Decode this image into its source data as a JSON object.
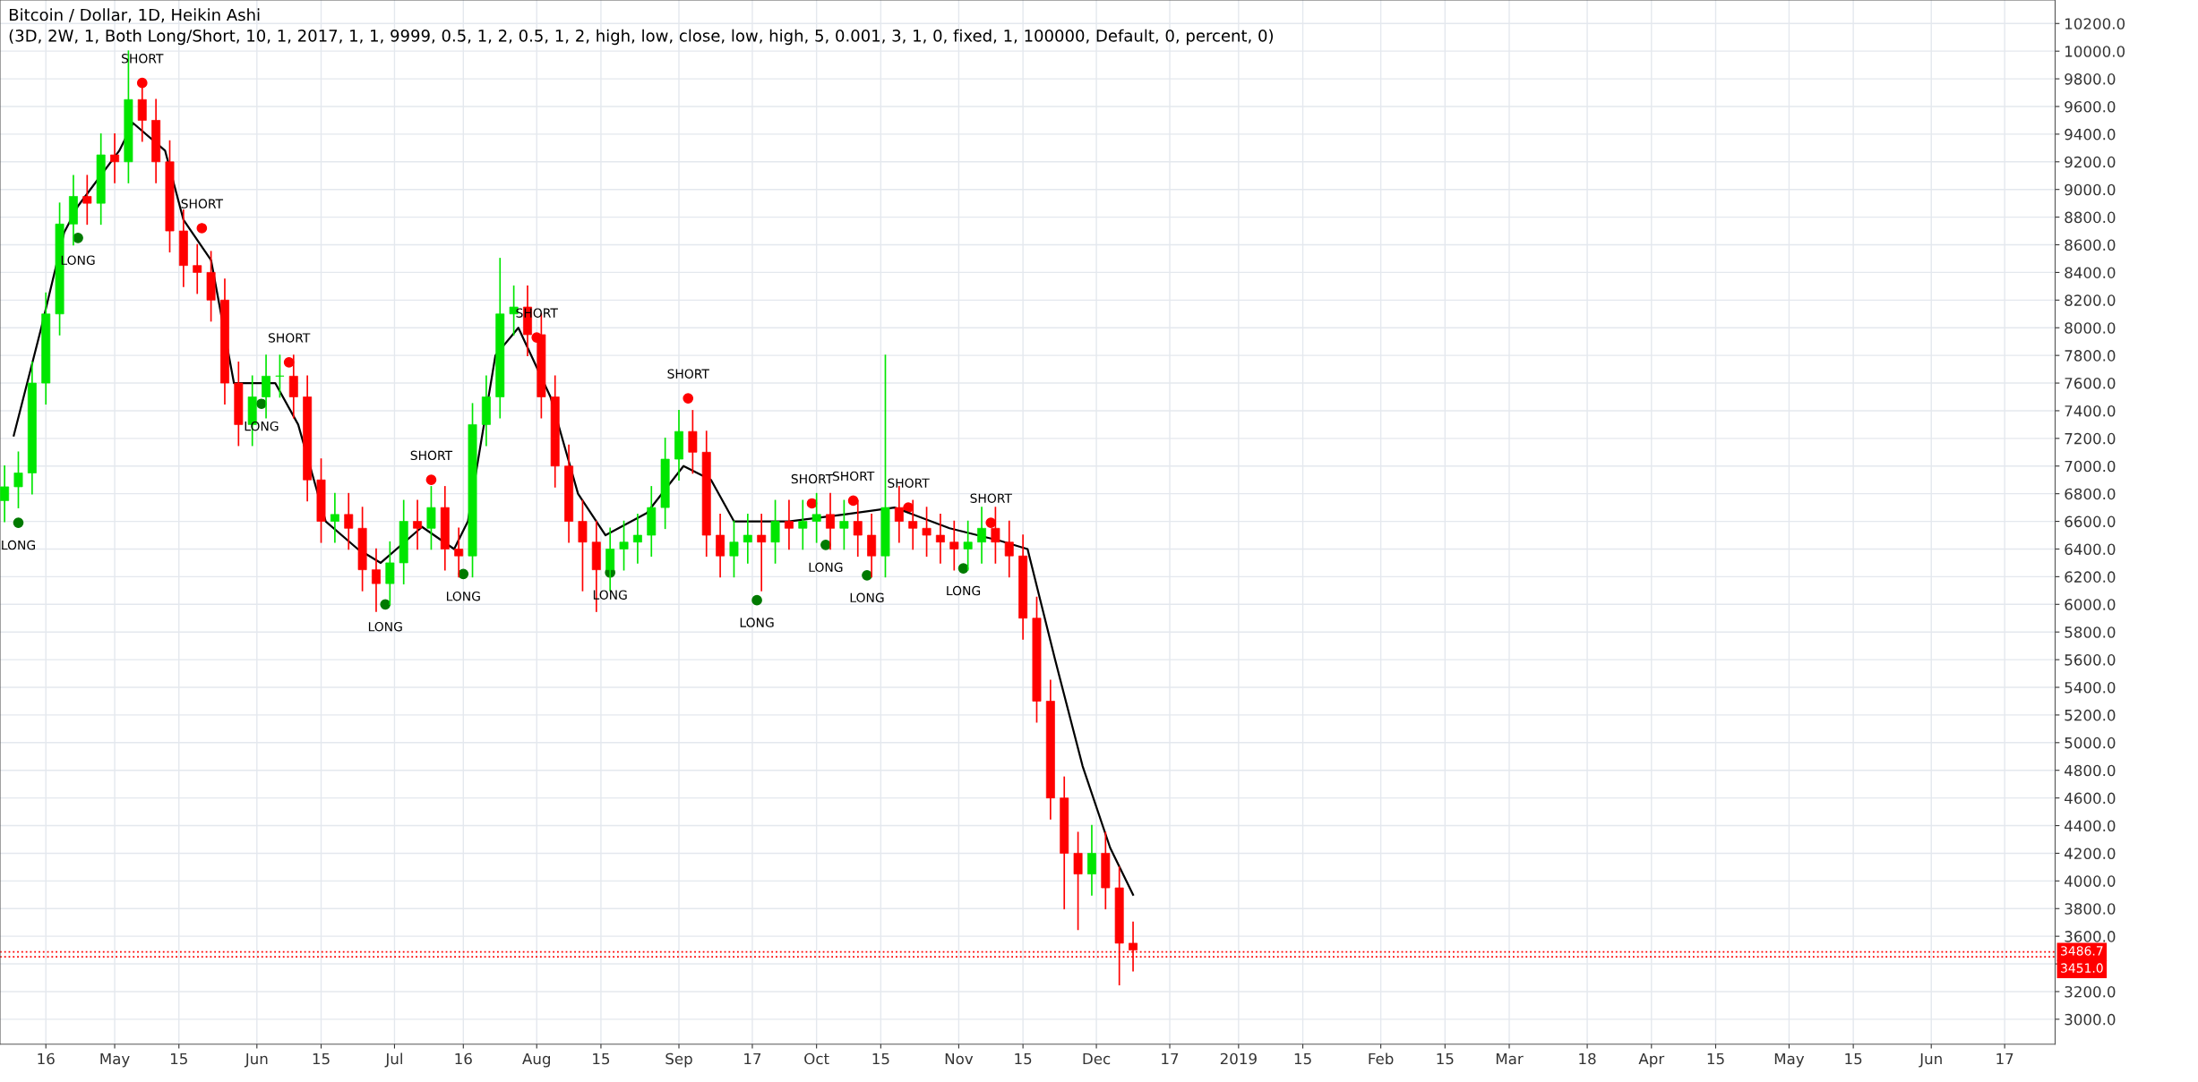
{
  "chart_data": {
    "type": "candlestick",
    "title": "Bitcoin / Dollar, 1D, Heikin Ashi",
    "subtitle": "(3D, 2W, 1, Both Long/Short, 10, 1, 2017, 1, 1, 9999, 0.5, 1, 2, 0.5, 1, 2, high, low, close, low, high, 5, 0.001, 3, 1, 0, fixed, 1, 100000, Default, 0, percent, 0)",
    "x": [
      "2018-04-07",
      "2018-04-10",
      "2018-04-13",
      "2018-04-16",
      "2018-04-19",
      "2018-04-22",
      "2018-04-25",
      "2018-04-28",
      "2018-05-01",
      "2018-05-04",
      "2018-05-07",
      "2018-05-10",
      "2018-05-13",
      "2018-05-16",
      "2018-05-19",
      "2018-05-22",
      "2018-05-25",
      "2018-05-28",
      "2018-05-31",
      "2018-06-03",
      "2018-06-06",
      "2018-06-09",
      "2018-06-12",
      "2018-06-15",
      "2018-06-18",
      "2018-06-21",
      "2018-06-24",
      "2018-06-27",
      "2018-06-30",
      "2018-07-03",
      "2018-07-06",
      "2018-07-09",
      "2018-07-12",
      "2018-07-15",
      "2018-07-18",
      "2018-07-21",
      "2018-07-24",
      "2018-07-27",
      "2018-07-30",
      "2018-08-02",
      "2018-08-05",
      "2018-08-08",
      "2018-08-11",
      "2018-08-14",
      "2018-08-17",
      "2018-08-20",
      "2018-08-23",
      "2018-08-26",
      "2018-08-29",
      "2018-09-01",
      "2018-09-04",
      "2018-09-07",
      "2018-09-10",
      "2018-09-13",
      "2018-09-16",
      "2018-09-19",
      "2018-09-22",
      "2018-09-25",
      "2018-09-28",
      "2018-10-01",
      "2018-10-04",
      "2018-10-07",
      "2018-10-10",
      "2018-10-13",
      "2018-10-16",
      "2018-10-19",
      "2018-10-22",
      "2018-10-25",
      "2018-10-28",
      "2018-10-31",
      "2018-11-03",
      "2018-11-06",
      "2018-11-09",
      "2018-11-12",
      "2018-11-15",
      "2018-11-18",
      "2018-11-21",
      "2018-11-24",
      "2018-11-27",
      "2018-11-30",
      "2018-12-03",
      "2018-12-06",
      "2018-12-09"
    ],
    "ohlc": [
      [
        6750,
        7000,
        6600,
        6850
      ],
      [
        6850,
        7100,
        6700,
        6950
      ],
      [
        6950,
        7750,
        6800,
        7600
      ],
      [
        7600,
        8250,
        7450,
        8100
      ],
      [
        8100,
        8900,
        7950,
        8750
      ],
      [
        8750,
        9100,
        8600,
        8950
      ],
      [
        8950,
        9100,
        8750,
        8900
      ],
      [
        8900,
        9400,
        8750,
        9250
      ],
      [
        9250,
        9400,
        9050,
        9200
      ],
      [
        9200,
        10000,
        9050,
        9650
      ],
      [
        9650,
        9800,
        9350,
        9500
      ],
      [
        9500,
        9650,
        9050,
        9200
      ],
      [
        9200,
        9350,
        8550,
        8700
      ],
      [
        8700,
        8850,
        8300,
        8450
      ],
      [
        8450,
        8600,
        8250,
        8400
      ],
      [
        8400,
        8550,
        8050,
        8200
      ],
      [
        8200,
        8350,
        7450,
        7600
      ],
      [
        7600,
        7750,
        7150,
        7300
      ],
      [
        7300,
        7650,
        7150,
        7500
      ],
      [
        7500,
        7800,
        7350,
        7650
      ],
      [
        7650,
        7800,
        7500,
        7650
      ],
      [
        7650,
        7800,
        7350,
        7500
      ],
      [
        7500,
        7650,
        6750,
        6900
      ],
      [
        6900,
        7050,
        6450,
        6600
      ],
      [
        6600,
        6800,
        6450,
        6650
      ],
      [
        6650,
        6800,
        6400,
        6550
      ],
      [
        6550,
        6700,
        6100,
        6250
      ],
      [
        6250,
        6400,
        5950,
        6150
      ],
      [
        6150,
        6450,
        6000,
        6300
      ],
      [
        6300,
        6750,
        6150,
        6600
      ],
      [
        6600,
        6750,
        6400,
        6550
      ],
      [
        6550,
        6850,
        6400,
        6700
      ],
      [
        6700,
        6850,
        6250,
        6400
      ],
      [
        6400,
        6550,
        6200,
        6350
      ],
      [
        6350,
        7450,
        6200,
        7300
      ],
      [
        7300,
        7650,
        7150,
        7500
      ],
      [
        7500,
        8500,
        7350,
        8100
      ],
      [
        8100,
        8300,
        7950,
        8150
      ],
      [
        8150,
        8300,
        7800,
        7950
      ],
      [
        7950,
        8100,
        7350,
        7500
      ],
      [
        7500,
        7650,
        6850,
        7000
      ],
      [
        7000,
        7150,
        6450,
        6600
      ],
      [
        6600,
        6750,
        6100,
        6450
      ],
      [
        6450,
        6600,
        5950,
        6250
      ],
      [
        6250,
        6550,
        6100,
        6400
      ],
      [
        6400,
        6600,
        6250,
        6450
      ],
      [
        6450,
        6650,
        6300,
        6500
      ],
      [
        6500,
        6850,
        6350,
        6700
      ],
      [
        6700,
        7200,
        6550,
        7050
      ],
      [
        7050,
        7400,
        6900,
        7250
      ],
      [
        7250,
        7400,
        6950,
        7100
      ],
      [
        7100,
        7250,
        6350,
        6500
      ],
      [
        6500,
        6650,
        6200,
        6350
      ],
      [
        6350,
        6600,
        6200,
        6450
      ],
      [
        6450,
        6650,
        6300,
        6500
      ],
      [
        6500,
        6650,
        6100,
        6450
      ],
      [
        6450,
        6750,
        6300,
        6600
      ],
      [
        6600,
        6750,
        6400,
        6550
      ],
      [
        6550,
        6750,
        6400,
        6600
      ],
      [
        6600,
        6800,
        6450,
        6650
      ],
      [
        6650,
        6800,
        6400,
        6550
      ],
      [
        6550,
        6750,
        6400,
        6600
      ],
      [
        6600,
        6750,
        6350,
        6500
      ],
      [
        6500,
        6650,
        6200,
        6350
      ],
      [
        6350,
        7800,
        6200,
        6700
      ],
      [
        6700,
        6850,
        6450,
        6600
      ],
      [
        6600,
        6750,
        6400,
        6550
      ],
      [
        6550,
        6700,
        6350,
        6500
      ],
      [
        6500,
        6650,
        6300,
        6450
      ],
      [
        6450,
        6600,
        6250,
        6400
      ],
      [
        6400,
        6600,
        6250,
        6450
      ],
      [
        6450,
        6700,
        6300,
        6550
      ],
      [
        6550,
        6700,
        6300,
        6450
      ],
      [
        6450,
        6600,
        6200,
        6350
      ],
      [
        6350,
        6500,
        5750,
        5900
      ],
      [
        5900,
        6050,
        5150,
        5300
      ],
      [
        5300,
        5450,
        4450,
        4600
      ],
      [
        4600,
        4750,
        3800,
        4200
      ],
      [
        4200,
        4350,
        3650,
        4050
      ],
      [
        4050,
        4400,
        3900,
        4200
      ],
      [
        4200,
        4350,
        3800,
        3950
      ],
      [
        3950,
        4100,
        3250,
        3550
      ],
      [
        3550,
        3700,
        3350,
        3500
      ]
    ],
    "colors": [
      "#00e600",
      "#00e600",
      "#00e600",
      "#00e600",
      "#00e600",
      "#00e600",
      "#ff0000",
      "#00e600",
      "#ff0000",
      "#00e600",
      "#ff0000",
      "#ff0000",
      "#ff0000",
      "#ff0000",
      "#ff0000",
      "#ff0000",
      "#ff0000",
      "#ff0000",
      "#00e600",
      "#00e600",
      "#00e600",
      "#ff0000",
      "#ff0000",
      "#ff0000",
      "#00e600",
      "#ff0000",
      "#ff0000",
      "#ff0000",
      "#00e600",
      "#00e600",
      "#ff0000",
      "#00e600",
      "#ff0000",
      "#ff0000",
      "#00e600",
      "#00e600",
      "#00e600",
      "#00e600",
      "#ff0000",
      "#ff0000",
      "#ff0000",
      "#ff0000",
      "#ff0000",
      "#ff0000",
      "#00e600",
      "#00e600",
      "#00e600",
      "#00e600",
      "#00e600",
      "#00e600",
      "#ff0000",
      "#ff0000",
      "#ff0000",
      "#00e600",
      "#00e600",
      "#ff0000",
      "#00e600",
      "#ff0000",
      "#00e600",
      "#00e600",
      "#ff0000",
      "#00e600",
      "#ff0000",
      "#ff0000",
      "#00e600",
      "#ff0000",
      "#ff0000",
      "#ff0000",
      "#ff0000",
      "#ff0000",
      "#00e600",
      "#00e600",
      "#ff0000",
      "#ff0000",
      "#ff0000",
      "#ff0000",
      "#ff0000",
      "#ff0000",
      "#ff0000",
      "#00e600",
      "#ff0000",
      "#ff0000",
      "#ff0000"
    ],
    "series": [
      {
        "type": "line",
        "color": "#000000",
        "x": [
          "2018-04-09",
          "2018-04-15",
          "2018-04-20",
          "2018-04-23",
          "2018-05-02",
          "2018-05-05",
          "2018-05-12",
          "2018-05-16",
          "2018-05-22",
          "2018-05-27",
          "2018-06-05",
          "2018-06-10",
          "2018-06-16",
          "2018-06-23",
          "2018-06-28",
          "2018-07-07",
          "2018-07-14",
          "2018-07-17",
          "2018-07-23",
          "2018-07-28",
          "2018-08-04",
          "2018-08-10",
          "2018-08-16",
          "2018-08-25",
          "2018-09-02",
          "2018-09-08",
          "2018-09-13",
          "2018-09-25",
          "2018-10-07",
          "2018-10-18",
          "2018-10-30",
          "2018-11-10",
          "2018-11-16",
          "2018-11-22",
          "2018-11-28",
          "2018-12-04",
          "2018-12-09"
        ],
        "values": [
          7220,
          8000,
          8690,
          8880,
          9280,
          9480,
          9280,
          8780,
          8490,
          7600,
          7600,
          7300,
          6600,
          6400,
          6300,
          6560,
          6400,
          6600,
          7800,
          8000,
          7500,
          6800,
          6500,
          6660,
          7000,
          6900,
          6600,
          6600,
          6650,
          6700,
          6550,
          6460,
          6400,
          5600,
          4830,
          4240,
          3900
        ]
      },
      {
        "type": "scatter",
        "color": "#ff0000",
        "x": [
          "2018-05-07",
          "2018-05-20",
          "2018-06-08",
          "2018-07-09",
          "2018-08-01",
          "2018-09-03",
          "2018-09-30",
          "2018-10-09",
          "2018-10-21",
          "2018-11-08"
        ],
        "values": [
          9770,
          8720,
          7750,
          6900,
          7930,
          7490,
          6730,
          6750,
          6700,
          6590
        ]
      },
      {
        "type": "scatter",
        "color": "#007a00",
        "x": [
          "2018-04-10",
          "2018-04-23",
          "2018-06-02",
          "2018-06-29",
          "2018-07-16",
          "2018-08-17",
          "2018-09-18",
          "2018-10-03",
          "2018-10-12",
          "2018-11-02"
        ],
        "values": [
          6590,
          8650,
          7450,
          6000,
          6220,
          6230,
          6030,
          6430,
          6210,
          6260
        ]
      }
    ],
    "annotations": [
      {
        "text": "SHORT",
        "x": "2018-05-07",
        "y": 9770
      },
      {
        "text": "SHORT",
        "x": "2018-05-20",
        "y": 8720
      },
      {
        "text": "SHORT",
        "x": "2018-06-08",
        "y": 7750
      },
      {
        "text": "SHORT",
        "x": "2018-07-09",
        "y": 6900
      },
      {
        "text": "SHORT",
        "x": "2018-08-01",
        "y": 7930
      },
      {
        "text": "SHORT",
        "x": "2018-09-03",
        "y": 7490
      },
      {
        "text": "SHORT",
        "x": "2018-09-30",
        "y": 6730
      },
      {
        "text": "SHORT",
        "x": "2018-10-09",
        "y": 6750
      },
      {
        "text": "SHORT",
        "x": "2018-10-21",
        "y": 6700
      },
      {
        "text": "SHORT",
        "x": "2018-11-08",
        "y": 6590
      },
      {
        "text": "LONG",
        "x": "2018-04-10",
        "y": 6590
      },
      {
        "text": "LONG",
        "x": "2018-04-23",
        "y": 8650
      },
      {
        "text": "LONG",
        "x": "2018-06-02",
        "y": 7450
      },
      {
        "text": "LONG",
        "x": "2018-06-29",
        "y": 6000
      },
      {
        "text": "LONG",
        "x": "2018-07-16",
        "y": 6220
      },
      {
        "text": "LONG",
        "x": "2018-08-17",
        "y": 6230
      },
      {
        "text": "LONG",
        "x": "2018-09-18",
        "y": 6030
      },
      {
        "text": "LONG",
        "x": "2018-10-03",
        "y": 6430
      },
      {
        "text": "LONG",
        "x": "2018-10-12",
        "y": 6210
      },
      {
        "text": "LONG",
        "x": "2018-11-02",
        "y": 6260
      }
    ],
    "ref_lines": [
      {
        "axis": "y",
        "value": 3486.7,
        "label": "3486.7",
        "color": "#ff0000",
        "line_style": "dotted"
      },
      {
        "axis": "y",
        "value": 3451.0,
        "label": "3451.0",
        "color": "#ff0000",
        "line_style": "dotted"
      }
    ],
    "xlim": [
      "2018-04-06",
      "2019-06-28"
    ],
    "xticks": [
      {
        "value": "2018-04-16",
        "label": "16"
      },
      {
        "value": "2018-05-01",
        "label": "May"
      },
      {
        "value": "2018-05-15",
        "label": "15"
      },
      {
        "value": "2018-06-01",
        "label": "Jun"
      },
      {
        "value": "2018-06-15",
        "label": "15"
      },
      {
        "value": "2018-07-01",
        "label": "Jul"
      },
      {
        "value": "2018-07-16",
        "label": "16"
      },
      {
        "value": "2018-08-01",
        "label": "Aug"
      },
      {
        "value": "2018-08-15",
        "label": "15"
      },
      {
        "value": "2018-09-01",
        "label": "Sep"
      },
      {
        "value": "2018-09-17",
        "label": "17"
      },
      {
        "value": "2018-10-01",
        "label": "Oct"
      },
      {
        "value": "2018-10-15",
        "label": "15"
      },
      {
        "value": "2018-11-01",
        "label": "Nov"
      },
      {
        "value": "2018-11-15",
        "label": "15"
      },
      {
        "value": "2018-12-01",
        "label": "Dec"
      },
      {
        "value": "2018-12-17",
        "label": "17"
      },
      {
        "value": "2019-01-01",
        "label": "2019"
      },
      {
        "value": "2019-01-15",
        "label": "15"
      },
      {
        "value": "2019-02-01",
        "label": "Feb"
      },
      {
        "value": "2019-02-15",
        "label": "15"
      },
      {
        "value": "2019-03-01",
        "label": "Mar"
      },
      {
        "value": "2019-03-18",
        "label": "18"
      },
      {
        "value": "2019-04-01",
        "label": "Apr"
      },
      {
        "value": "2019-04-15",
        "label": "15"
      },
      {
        "value": "2019-05-01",
        "label": "May"
      },
      {
        "value": "2019-05-15",
        "label": "15"
      },
      {
        "value": "2019-06-01",
        "label": "Jun"
      },
      {
        "value": "2019-06-17",
        "label": "17"
      }
    ],
    "ylim": [
      2820,
      10370
    ],
    "yticks": [
      {
        "value": 3000,
        "label": "3000.0"
      },
      {
        "value": 3200,
        "label": "3200.0"
      },
      {
        "value": 3400,
        "label": null
      },
      {
        "value": 3600,
        "label": "3600.0"
      },
      {
        "value": 3800,
        "label": "3800.0"
      },
      {
        "value": 4000,
        "label": "4000.0"
      },
      {
        "value": 4200,
        "label": "4200.0"
      },
      {
        "value": 4400,
        "label": "4400.0"
      },
      {
        "value": 4600,
        "label": "4600.0"
      },
      {
        "value": 4800,
        "label": "4800.0"
      },
      {
        "value": 5000,
        "label": "5000.0"
      },
      {
        "value": 5200,
        "label": "5200.0"
      },
      {
        "value": 5400,
        "label": "5400.0"
      },
      {
        "value": 5600,
        "label": "5600.0"
      },
      {
        "value": 5800,
        "label": "5800.0"
      },
      {
        "value": 6000,
        "label": "6000.0"
      },
      {
        "value": 6200,
        "label": "6200.0"
      },
      {
        "value": 6400,
        "label": "6400.0"
      },
      {
        "value": 6600,
        "label": "6600.0"
      },
      {
        "value": 6800,
        "label": "6800.0"
      },
      {
        "value": 7000,
        "label": "7000.0"
      },
      {
        "value": 7200,
        "label": "7200.0"
      },
      {
        "value": 7400,
        "label": "7400.0"
      },
      {
        "value": 7600,
        "label": "7600.0"
      },
      {
        "value": 7800,
        "label": "7800.0"
      },
      {
        "value": 8000,
        "label": "8000.0"
      },
      {
        "value": 8200,
        "label": "8200.0"
      },
      {
        "value": 8400,
        "label": "8400.0"
      },
      {
        "value": 8600,
        "label": "8600.0"
      },
      {
        "value": 8800,
        "label": "8800.0"
      },
      {
        "value": 9000,
        "label": "9000.0"
      },
      {
        "value": 9200,
        "label": "9200.0"
      },
      {
        "value": 9400,
        "label": "9400.0"
      },
      {
        "value": 9600,
        "label": "9600.0"
      },
      {
        "value": 9800,
        "label": "9800.0"
      },
      {
        "value": 10000,
        "label": "10000.0"
      },
      {
        "value": 10200,
        "label": "10200.0"
      }
    ],
    "grid": true
  }
}
